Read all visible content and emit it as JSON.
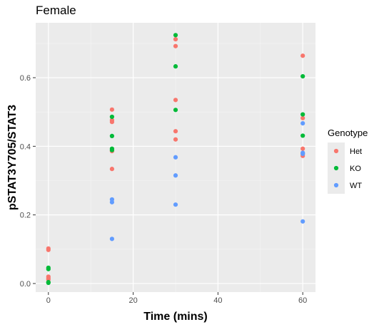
{
  "chart_data": {
    "type": "scatter",
    "title": "Female",
    "xlabel": "Time (mins)",
    "ylabel": "pSTAT3Y705/STAT3",
    "xlim": [
      -3,
      63
    ],
    "ylim": [
      -0.025,
      0.76
    ],
    "x_ticks": [
      0,
      20,
      40,
      60
    ],
    "y_ticks": [
      0.0,
      0.2,
      0.4,
      0.6
    ],
    "x_tick_labels": [
      "0",
      "20",
      "40",
      "60"
    ],
    "y_tick_labels": [
      "0.0",
      "0.2",
      "0.4",
      "0.6"
    ],
    "grid": true,
    "legend_title": "Genotype",
    "legend_position": "right",
    "series": [
      {
        "name": "Het",
        "color": "#F8766D",
        "points": [
          [
            0,
            0.102
          ],
          [
            0,
            0.098
          ],
          [
            0,
            0.02
          ],
          [
            0,
            0.016
          ],
          [
            0,
            0.012
          ],
          [
            15,
            0.507
          ],
          [
            15,
            0.476
          ],
          [
            15,
            0.471
          ],
          [
            15,
            0.386
          ],
          [
            15,
            0.334
          ],
          [
            30,
            0.712
          ],
          [
            30,
            0.692
          ],
          [
            30,
            0.535
          ],
          [
            30,
            0.444
          ],
          [
            30,
            0.42
          ],
          [
            60,
            0.664
          ],
          [
            60,
            0.482
          ],
          [
            60,
            0.393
          ],
          [
            60,
            0.377
          ],
          [
            60,
            0.372
          ]
        ]
      },
      {
        "name": "KO",
        "color": "#00BA38",
        "points": [
          [
            0,
            0.046
          ],
          [
            0,
            0.042
          ],
          [
            0,
            0.004
          ],
          [
            0,
            0.002
          ],
          [
            15,
            0.486
          ],
          [
            15,
            0.43
          ],
          [
            15,
            0.393
          ],
          [
            15,
            0.389
          ],
          [
            30,
            0.724
          ],
          [
            30,
            0.633
          ],
          [
            30,
            0.506
          ],
          [
            60,
            0.604
          ],
          [
            60,
            0.493
          ],
          [
            60,
            0.431
          ]
        ]
      },
      {
        "name": "WT",
        "color": "#619CFF",
        "points": [
          [
            15,
            0.245
          ],
          [
            15,
            0.237
          ],
          [
            15,
            0.13
          ],
          [
            30,
            0.368
          ],
          [
            30,
            0.315
          ],
          [
            30,
            0.23
          ],
          [
            60,
            0.467
          ],
          [
            60,
            0.381
          ],
          [
            60,
            0.378
          ],
          [
            60,
            0.181
          ]
        ]
      }
    ]
  }
}
